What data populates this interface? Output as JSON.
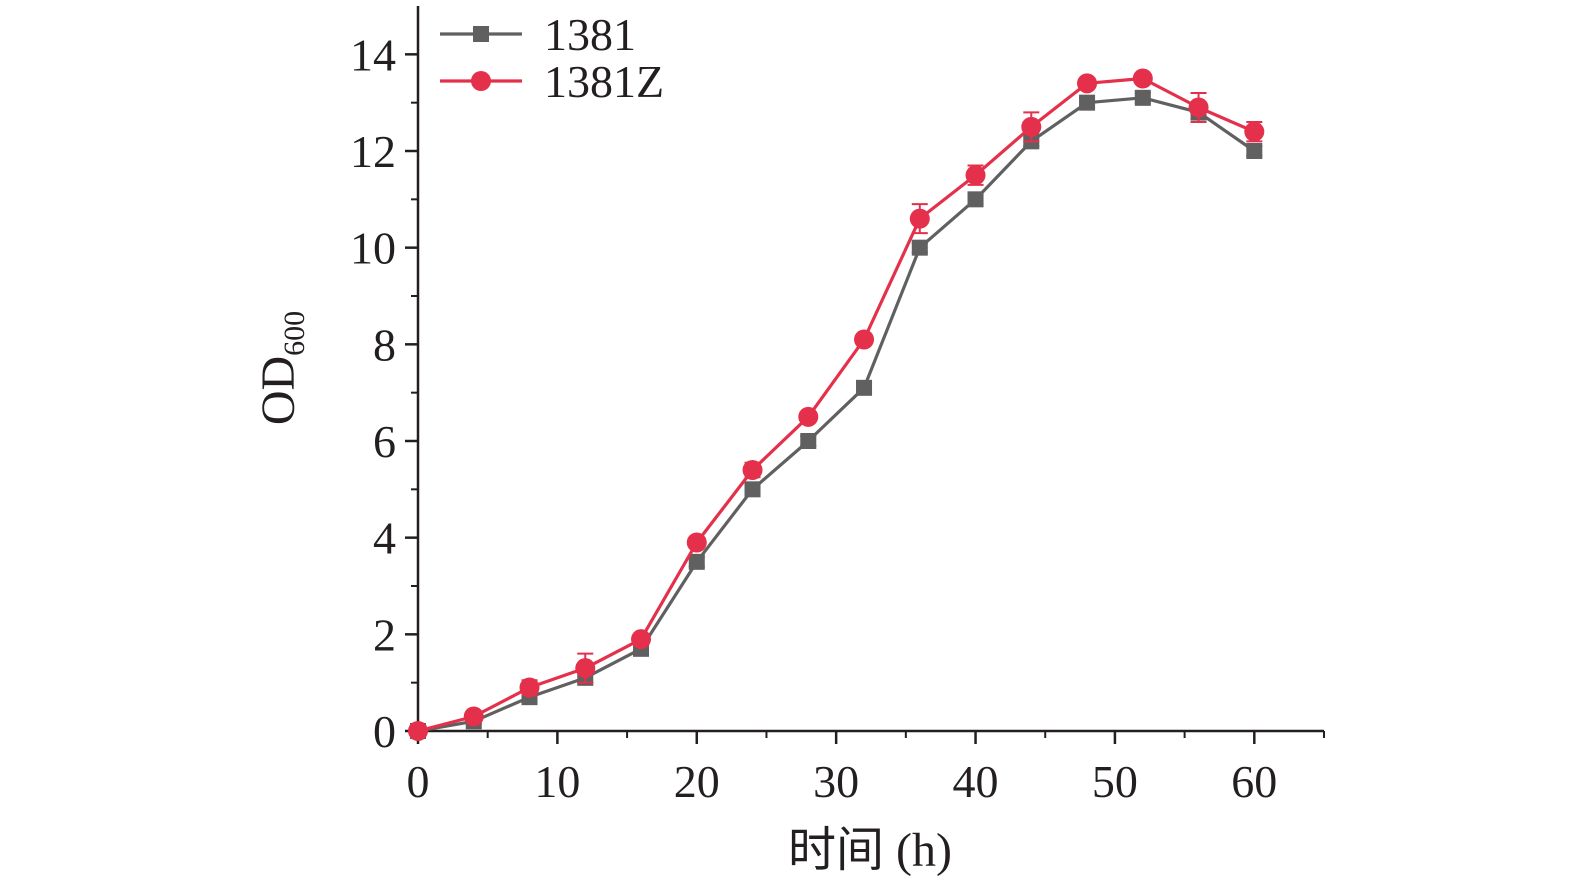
{
  "chart_data": {
    "type": "line",
    "title": "",
    "xlabel": "时间 (h)",
    "ylabel": {
      "main": "OD",
      "sub": "600"
    },
    "xlim": [
      0,
      65
    ],
    "ylim": [
      0,
      15
    ],
    "xticks": [
      0,
      10,
      20,
      30,
      40,
      50,
      60
    ],
    "xtick_labels": [
      "0",
      "10",
      "20",
      "30",
      "40",
      "50",
      "60"
    ],
    "yticks": [
      0,
      2,
      4,
      6,
      8,
      10,
      12,
      14
    ],
    "ytick_labels": [
      "0",
      "2",
      "4",
      "6",
      "8",
      "10",
      "12",
      "14"
    ],
    "grid": false,
    "legend_position": "top-left",
    "x": [
      0,
      4,
      8,
      12,
      16,
      20,
      24,
      28,
      32,
      36,
      40,
      44,
      48,
      52,
      56,
      60
    ],
    "series": [
      {
        "name": "1381",
        "marker": "square",
        "color": "#606060",
        "values": [
          0.0,
          0.2,
          0.7,
          1.1,
          1.7,
          3.5,
          5.0,
          6.0,
          7.1,
          10.0,
          11.0,
          12.2,
          13.0,
          13.1,
          12.8,
          12.0
        ],
        "errors": [
          0.05,
          0.05,
          0.1,
          0.1,
          0.1,
          0.1,
          0.1,
          0.1,
          0.1,
          0.1,
          0.1,
          0.1,
          0.1,
          0.1,
          0.15,
          0.1
        ]
      },
      {
        "name": "1381Z",
        "marker": "circle",
        "color": "#e4304a",
        "values": [
          0.0,
          0.3,
          0.9,
          1.3,
          1.9,
          3.9,
          5.4,
          6.5,
          8.1,
          10.6,
          11.5,
          12.5,
          13.4,
          13.5,
          12.9,
          12.4
        ],
        "errors": [
          0.05,
          0.05,
          0.15,
          0.3,
          0.1,
          0.1,
          0.15,
          0.1,
          0.1,
          0.3,
          0.2,
          0.3,
          0.1,
          0.1,
          0.3,
          0.2
        ]
      }
    ]
  }
}
